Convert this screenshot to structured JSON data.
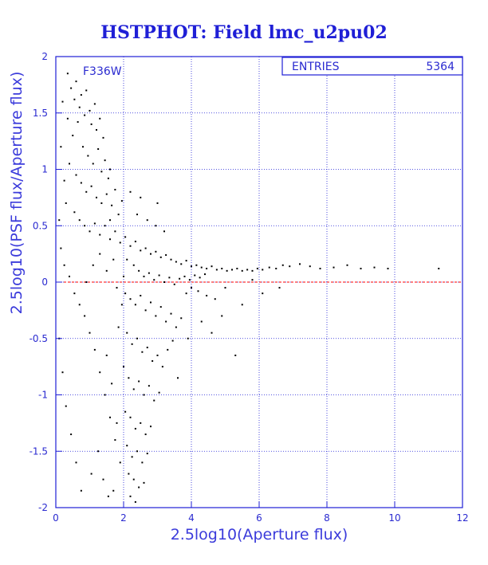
{
  "chart_data": {
    "type": "scatter",
    "title": "HSTPHOT: Field lmc_u2pu02",
    "xlabel": "2.5log10(Aperture flux)",
    "ylabel": "2.5log10(PSF flux/Aperture flux)",
    "xlim": [
      0,
      12
    ],
    "ylim": [
      -2,
      2
    ],
    "xticks": [
      0,
      2,
      4,
      6,
      8,
      10,
      12
    ],
    "xtick_labels": [
      "0",
      "2",
      "4",
      "6",
      "8",
      "10",
      "12"
    ],
    "yticks": [
      -2,
      -1.5,
      -1,
      -0.5,
      0,
      0.5,
      1,
      1.5,
      2
    ],
    "ytick_labels": [
      "-2",
      "-1.5",
      "-1",
      "-0.5",
      "0",
      "0.5",
      "1",
      "1.5",
      "2"
    ],
    "grid": true,
    "reference_line": {
      "y": 0,
      "color": "#ff0000",
      "style": "dashed"
    },
    "annotation": "F336W",
    "stats": {
      "label": "ENTRIES",
      "value": "5364"
    },
    "series": [
      {
        "marker_color": "#000000",
        "points": [
          [
            0.35,
            1.85
          ],
          [
            0.45,
            1.72
          ],
          [
            0.55,
            1.62
          ],
          [
            0.6,
            1.78
          ],
          [
            0.7,
            1.55
          ],
          [
            0.75,
            1.66
          ],
          [
            0.85,
            1.48
          ],
          [
            0.9,
            1.7
          ],
          [
            1.0,
            1.52
          ],
          [
            1.05,
            1.4
          ],
          [
            1.15,
            1.58
          ],
          [
            1.2,
            1.35
          ],
          [
            1.3,
            1.45
          ],
          [
            1.4,
            1.28
          ],
          [
            0.5,
            1.3
          ],
          [
            0.65,
            1.42
          ],
          [
            0.8,
            1.2
          ],
          [
            0.95,
            1.12
          ],
          [
            1.1,
            1.05
          ],
          [
            1.25,
            1.18
          ],
          [
            1.35,
            0.98
          ],
          [
            1.45,
            1.08
          ],
          [
            1.55,
            0.92
          ],
          [
            1.6,
            1.0
          ],
          [
            0.4,
            1.05
          ],
          [
            0.6,
            0.95
          ],
          [
            0.75,
            0.88
          ],
          [
            0.9,
            0.8
          ],
          [
            1.05,
            0.85
          ],
          [
            1.2,
            0.75
          ],
          [
            1.35,
            0.7
          ],
          [
            1.5,
            0.78
          ],
          [
            1.65,
            0.68
          ],
          [
            1.75,
            0.82
          ],
          [
            1.85,
            0.6
          ],
          [
            1.95,
            0.72
          ],
          [
            0.3,
            0.7
          ],
          [
            0.55,
            0.62
          ],
          [
            0.7,
            0.55
          ],
          [
            0.85,
            0.5
          ],
          [
            1.0,
            0.45
          ],
          [
            1.15,
            0.52
          ],
          [
            1.3,
            0.42
          ],
          [
            1.45,
            0.5
          ],
          [
            1.6,
            0.38
          ],
          [
            1.75,
            0.45
          ],
          [
            1.9,
            0.35
          ],
          [
            2.05,
            0.4
          ],
          [
            2.2,
            0.32
          ],
          [
            2.35,
            0.36
          ],
          [
            2.5,
            0.28
          ],
          [
            2.65,
            0.3
          ],
          [
            2.8,
            0.25
          ],
          [
            2.95,
            0.27
          ],
          [
            3.1,
            0.22
          ],
          [
            3.25,
            0.24
          ],
          [
            3.4,
            0.2
          ],
          [
            3.55,
            0.18
          ],
          [
            3.7,
            0.16
          ],
          [
            3.85,
            0.19
          ],
          [
            4.0,
            0.14
          ],
          [
            4.15,
            0.15
          ],
          [
            4.3,
            0.13
          ],
          [
            4.45,
            0.12
          ],
          [
            4.6,
            0.14
          ],
          [
            4.75,
            0.11
          ],
          [
            4.9,
            0.12
          ],
          [
            5.05,
            0.1
          ],
          [
            5.2,
            0.11
          ],
          [
            5.35,
            0.12
          ],
          [
            5.5,
            0.1
          ],
          [
            5.65,
            0.11
          ],
          [
            5.8,
            0.1
          ],
          [
            5.95,
            0.12
          ],
          [
            6.1,
            0.11
          ],
          [
            6.3,
            0.13
          ],
          [
            6.5,
            0.12
          ],
          [
            6.7,
            0.15
          ],
          [
            6.9,
            0.14
          ],
          [
            7.2,
            0.16
          ],
          [
            7.5,
            0.14
          ],
          [
            7.8,
            0.12
          ],
          [
            8.2,
            0.13
          ],
          [
            8.6,
            0.15
          ],
          [
            9.0,
            0.12
          ],
          [
            9.4,
            0.13
          ],
          [
            9.8,
            0.12
          ],
          [
            11.3,
            0.12
          ],
          [
            2.1,
            0.2
          ],
          [
            2.3,
            0.15
          ],
          [
            2.45,
            0.1
          ],
          [
            2.6,
            0.05
          ],
          [
            2.75,
            0.08
          ],
          [
            2.9,
            0.02
          ],
          [
            3.05,
            0.06
          ],
          [
            3.2,
            0.0
          ],
          [
            3.35,
            0.04
          ],
          [
            3.5,
            -0.02
          ],
          [
            3.65,
            0.03
          ],
          [
            3.8,
            0.05
          ],
          [
            3.95,
            0.02
          ],
          [
            4.1,
            0.06
          ],
          [
            4.25,
            0.04
          ],
          [
            4.4,
            0.07
          ],
          [
            2.05,
            -0.1
          ],
          [
            2.2,
            -0.15
          ],
          [
            2.35,
            -0.2
          ],
          [
            2.5,
            -0.12
          ],
          [
            2.65,
            -0.25
          ],
          [
            2.8,
            -0.18
          ],
          [
            2.95,
            -0.3
          ],
          [
            3.1,
            -0.22
          ],
          [
            3.25,
            -0.35
          ],
          [
            3.4,
            -0.28
          ],
          [
            3.55,
            -0.4
          ],
          [
            3.7,
            -0.32
          ],
          [
            3.85,
            -0.1
          ],
          [
            4.0,
            -0.05
          ],
          [
            4.2,
            -0.08
          ],
          [
            4.45,
            -0.12
          ],
          [
            2.1,
            -0.45
          ],
          [
            2.25,
            -0.55
          ],
          [
            2.4,
            -0.5
          ],
          [
            2.55,
            -0.62
          ],
          [
            2.7,
            -0.58
          ],
          [
            2.85,
            -0.7
          ],
          [
            3.0,
            -0.65
          ],
          [
            3.15,
            -0.75
          ],
          [
            3.3,
            -0.6
          ],
          [
            3.45,
            -0.52
          ],
          [
            2.0,
            -0.75
          ],
          [
            2.15,
            -0.85
          ],
          [
            2.3,
            -0.95
          ],
          [
            2.45,
            -0.88
          ],
          [
            2.6,
            -1.0
          ],
          [
            2.75,
            -0.92
          ],
          [
            2.9,
            -1.05
          ],
          [
            3.05,
            -0.98
          ],
          [
            2.05,
            -1.15
          ],
          [
            2.2,
            -1.2
          ],
          [
            2.35,
            -1.3
          ],
          [
            2.5,
            -1.25
          ],
          [
            2.65,
            -1.35
          ],
          [
            2.8,
            -1.28
          ],
          [
            2.1,
            -1.45
          ],
          [
            2.25,
            -1.55
          ],
          [
            2.4,
            -1.5
          ],
          [
            2.55,
            -1.6
          ],
          [
            2.7,
            -1.52
          ],
          [
            2.15,
            -1.7
          ],
          [
            2.3,
            -1.75
          ],
          [
            2.45,
            -1.82
          ],
          [
            2.6,
            -1.78
          ],
          [
            2.2,
            -1.9
          ],
          [
            2.35,
            -1.95
          ],
          [
            1.9,
            -1.6
          ],
          [
            1.75,
            -1.4
          ],
          [
            1.6,
            -1.2
          ],
          [
            1.45,
            -1.0
          ],
          [
            1.3,
            -0.8
          ],
          [
            1.15,
            -0.6
          ],
          [
            1.0,
            -0.45
          ],
          [
            0.85,
            -0.3
          ],
          [
            0.7,
            -0.2
          ],
          [
            0.55,
            -0.1
          ],
          [
            0.4,
            0.05
          ],
          [
            0.25,
            0.15
          ],
          [
            0.15,
            0.3
          ],
          [
            0.1,
            -0.5
          ],
          [
            0.2,
            -0.8
          ],
          [
            0.3,
            -1.1
          ],
          [
            0.45,
            -1.35
          ],
          [
            0.6,
            -1.6
          ],
          [
            0.75,
            -1.85
          ],
          [
            1.05,
            -1.7
          ],
          [
            1.25,
            -1.5
          ],
          [
            1.4,
            -1.75
          ],
          [
            1.55,
            -1.9
          ],
          [
            1.7,
            -1.85
          ],
          [
            1.8,
            -1.25
          ],
          [
            1.65,
            -0.9
          ],
          [
            1.5,
            -0.65
          ],
          [
            1.85,
            -0.4
          ],
          [
            1.95,
            -0.2
          ],
          [
            3.6,
            -0.85
          ],
          [
            3.9,
            -0.5
          ],
          [
            4.6,
            -0.45
          ],
          [
            5.5,
            -0.2
          ],
          [
            6.6,
            -0.05
          ],
          [
            4.7,
            -0.15
          ],
          [
            5.0,
            -0.05
          ],
          [
            5.8,
            0.02
          ],
          [
            6.1,
            -0.1
          ],
          [
            2.95,
            0.5
          ],
          [
            3.2,
            0.45
          ],
          [
            2.4,
            0.6
          ],
          [
            2.7,
            0.55
          ],
          [
            3.0,
            0.7
          ],
          [
            2.2,
            0.8
          ],
          [
            2.5,
            0.75
          ],
          [
            1.7,
            0.2
          ],
          [
            1.5,
            0.1
          ],
          [
            1.8,
            -0.05
          ],
          [
            2.0,
            0.05
          ],
          [
            1.6,
            0.55
          ],
          [
            1.3,
            0.25
          ],
          [
            1.1,
            0.15
          ],
          [
            0.9,
            0.0
          ],
          [
            0.2,
            1.6
          ],
          [
            0.35,
            1.45
          ],
          [
            0.15,
            1.2
          ],
          [
            0.25,
            0.9
          ],
          [
            0.1,
            0.55
          ],
          [
            5.3,
            -0.65
          ],
          [
            4.3,
            -0.35
          ],
          [
            4.9,
            -0.3
          ]
        ]
      }
    ]
  }
}
